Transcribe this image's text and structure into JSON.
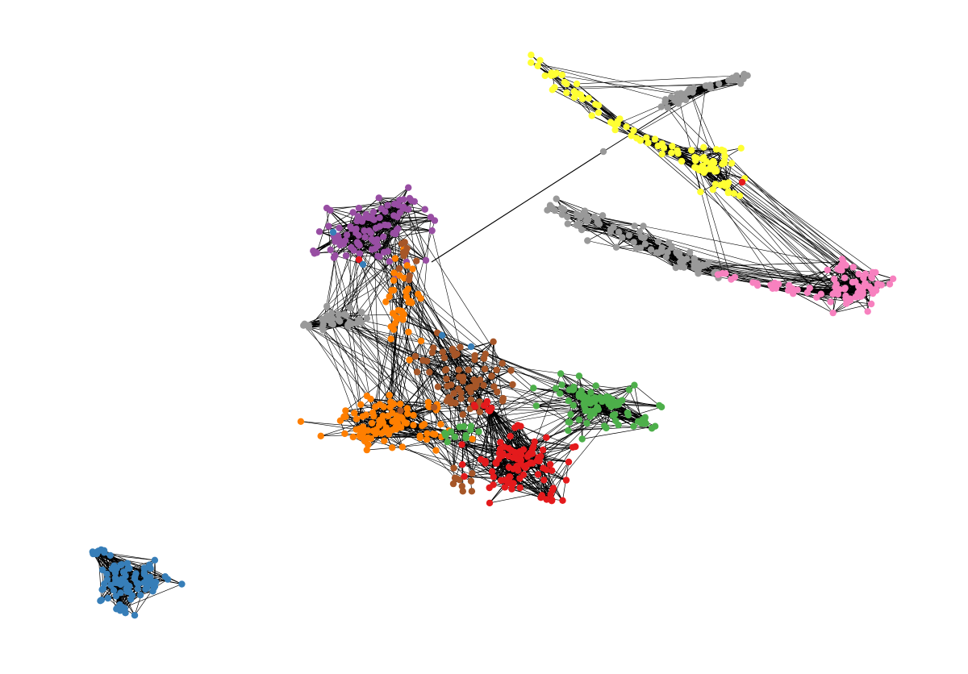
{
  "graph": {
    "type": "network",
    "background": "#ffffff",
    "edge_color": "#000000",
    "community_colors": {
      "purple": "#984ea3",
      "orange": "#ff7f00",
      "brown": "#a65628",
      "red": "#e41a1c",
      "green": "#4daf4a",
      "blue": "#377eb8",
      "yellow": "#ffff33",
      "pink": "#f781bf",
      "gray": "#999999"
    },
    "communities": [
      {
        "id": "purple-cluster",
        "color": "purple"
      },
      {
        "id": "orange-cluster",
        "color": "orange"
      },
      {
        "id": "brown-cluster",
        "color": "brown"
      },
      {
        "id": "red-cluster",
        "color": "red"
      },
      {
        "id": "green-cluster",
        "color": "green"
      },
      {
        "id": "gray-small-cluster",
        "color": "gray"
      },
      {
        "id": "gray-band-cluster",
        "color": "gray"
      },
      {
        "id": "gray-arm-cluster",
        "color": "gray"
      },
      {
        "id": "yellow-cluster",
        "color": "yellow"
      },
      {
        "id": "pink-cluster",
        "color": "pink"
      },
      {
        "id": "blue-component",
        "color": "blue"
      }
    ]
  }
}
